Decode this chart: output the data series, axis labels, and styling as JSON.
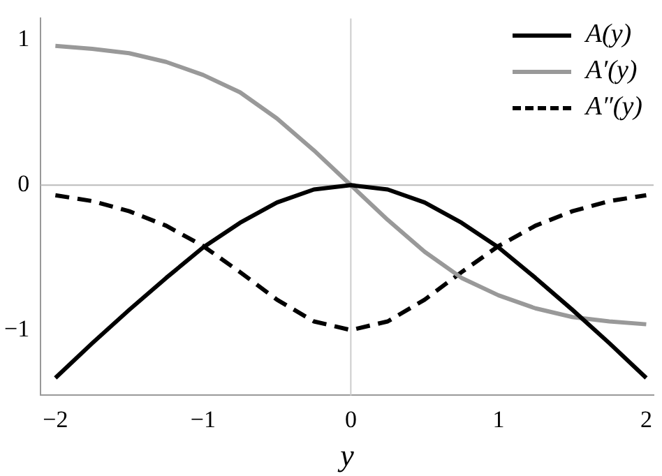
{
  "chart_data": {
    "type": "line",
    "xlabel": "y",
    "x": [
      -2,
      -1.75,
      -1.5,
      -1.25,
      -1,
      -0.75,
      -0.5,
      -0.25,
      0,
      0.25,
      0.5,
      0.75,
      1,
      1.25,
      1.5,
      1.75,
      2
    ],
    "series": [
      {
        "name": "A(y)",
        "color": "#000000",
        "line_style": "solid",
        "values": [
          -1.33,
          -1.09,
          -0.86,
          -0.64,
          -0.43,
          -0.26,
          -0.12,
          -0.03,
          0,
          -0.03,
          -0.12,
          -0.26,
          -0.43,
          -0.64,
          -0.86,
          -1.09,
          -1.33
        ]
      },
      {
        "name": "A′(y)",
        "color": "#999999",
        "line_style": "solid",
        "values": [
          0.96,
          0.94,
          0.91,
          0.85,
          0.76,
          0.64,
          0.46,
          0.24,
          0,
          -0.24,
          -0.46,
          -0.64,
          -0.76,
          -0.85,
          -0.91,
          -0.94,
          -0.96
        ]
      },
      {
        "name": "A″(y)",
        "color": "#000000",
        "line_style": "dashed",
        "values": [
          -0.07,
          -0.11,
          -0.18,
          -0.28,
          -0.42,
          -0.6,
          -0.79,
          -0.94,
          -1,
          -0.94,
          -0.79,
          -0.6,
          -0.42,
          -0.28,
          -0.18,
          -0.11,
          -0.07
        ]
      }
    ],
    "xlim": [
      -2.1,
      2.05
    ],
    "ylim": [
      -1.45,
      1.15
    ],
    "xticks": [
      {
        "value": -2,
        "label": "−2"
      },
      {
        "value": -1,
        "label": "−1"
      },
      0,
      1,
      2
    ],
    "yticks": [
      {
        "value": -1,
        "label": "−1"
      },
      0,
      1
    ],
    "ref_lines": [
      {
        "axis": "x",
        "value": 0,
        "color": "#cccccc"
      },
      {
        "axis": "y",
        "value": 0,
        "color": "#bbbbbb"
      }
    ],
    "grid": false,
    "legend": "top right",
    "marker": "none"
  }
}
